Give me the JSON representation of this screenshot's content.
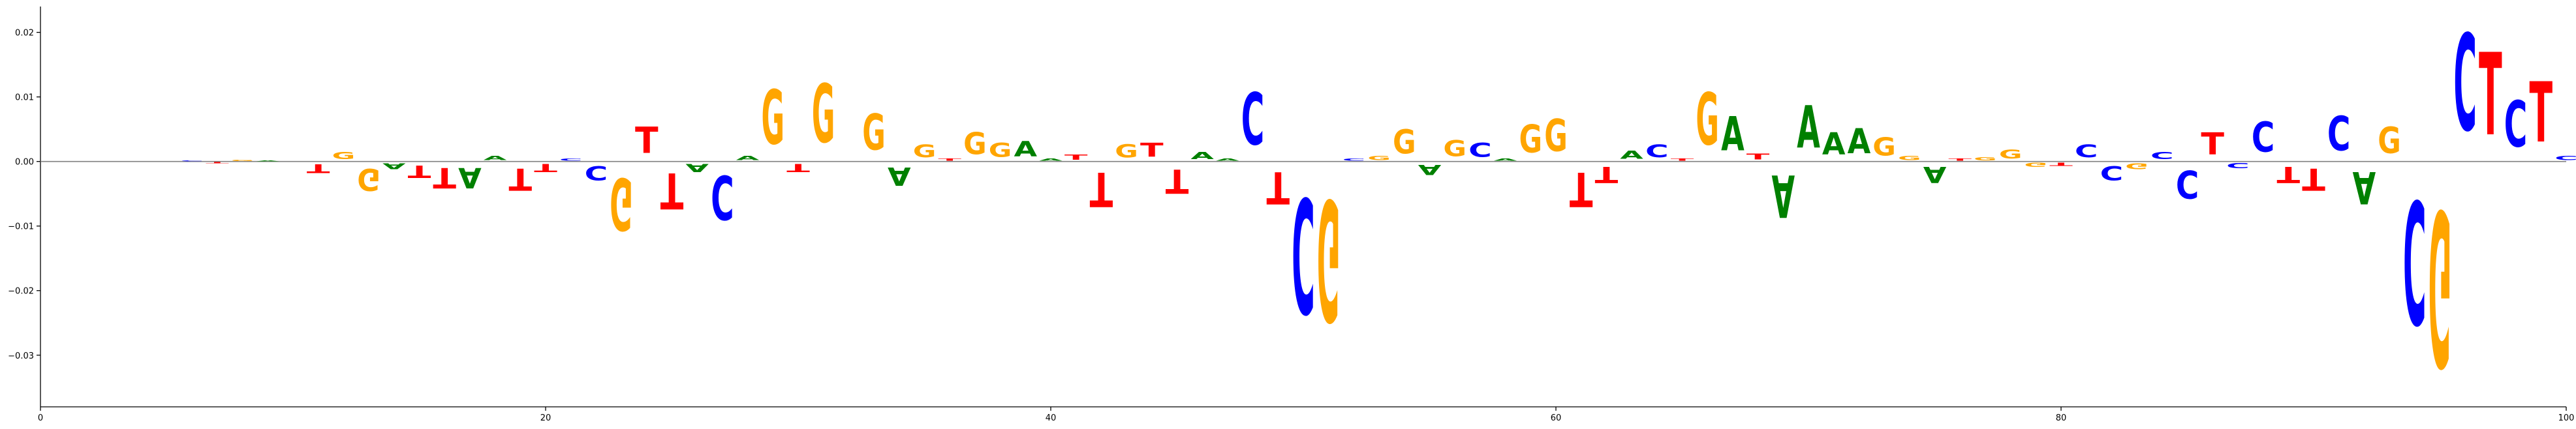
{
  "chart_data": {
    "type": "sequence-logo",
    "title": "",
    "xlabel": "",
    "ylabel": "",
    "xlim": [
      0,
      100
    ],
    "ylim": [
      -0.038,
      0.024
    ],
    "xticks": [
      0,
      20,
      40,
      60,
      80,
      100
    ],
    "xtick_labels": [
      "0",
      "20",
      "40",
      "60",
      "80",
      "100"
    ],
    "yticks": [
      -0.03,
      -0.02,
      -0.01,
      0.0,
      0.01,
      0.02
    ],
    "ytick_labels": [
      "−0.03",
      "−0.02",
      "−0.01",
      "0.00",
      "0.01",
      "0.02"
    ],
    "grid": false,
    "colors": {
      "A": "#008000",
      "C": "#0000ff",
      "G": "#ffa500",
      "T": "#ff0000"
    },
    "letters": [
      {
        "x": 6,
        "base": "C",
        "value": 0.0002
      },
      {
        "x": 7,
        "base": "T",
        "value": -0.0003
      },
      {
        "x": 8,
        "base": "G",
        "value": 0.0003
      },
      {
        "x": 9,
        "base": "A",
        "value": 0.0002
      },
      {
        "x": 11,
        "base": "T",
        "value": -0.0022
      },
      {
        "x": 12,
        "base": "G",
        "value": 0.0018
      },
      {
        "x": 13,
        "base": "G",
        "value": -0.0055
      },
      {
        "x": 14,
        "base": "A",
        "value": -0.0015
      },
      {
        "x": 15,
        "base": "T",
        "value": -0.003
      },
      {
        "x": 16,
        "base": "T",
        "value": -0.005
      },
      {
        "x": 17,
        "base": "A",
        "value": -0.005
      },
      {
        "x": 18,
        "base": "A",
        "value": 0.001
      },
      {
        "x": 19,
        "base": "T",
        "value": -0.0055
      },
      {
        "x": 20,
        "base": "T",
        "value": -0.002
      },
      {
        "x": 21,
        "base": "C",
        "value": 0.0005
      },
      {
        "x": 22,
        "base": "C",
        "value": -0.0035
      },
      {
        "x": 23,
        "base": "G",
        "value": -0.013
      },
      {
        "x": 24,
        "base": "T",
        "value": 0.0065
      },
      {
        "x": 25,
        "base": "T",
        "value": -0.009
      },
      {
        "x": 26,
        "base": "A",
        "value": -0.002
      },
      {
        "x": 27,
        "base": "C",
        "value": -0.011
      },
      {
        "x": 28,
        "base": "A",
        "value": 0.001
      },
      {
        "x": 29,
        "base": "G",
        "value": 0.0135
      },
      {
        "x": 30,
        "base": "T",
        "value": -0.002
      },
      {
        "x": 31,
        "base": "G",
        "value": 0.0145
      },
      {
        "x": 33,
        "base": "G",
        "value": 0.009
      },
      {
        "x": 34,
        "base": "A",
        "value": -0.0045
      },
      {
        "x": 35,
        "base": "G",
        "value": 0.0032
      },
      {
        "x": 36,
        "base": "T",
        "value": 0.0005
      },
      {
        "x": 37,
        "base": "G",
        "value": 0.0055
      },
      {
        "x": 38,
        "base": "G",
        "value": 0.0035
      },
      {
        "x": 39,
        "base": "A",
        "value": 0.0038
      },
      {
        "x": 40,
        "base": "A",
        "value": 0.0005
      },
      {
        "x": 41,
        "base": "T",
        "value": 0.0013
      },
      {
        "x": 42,
        "base": "T",
        "value": -0.0085
      },
      {
        "x": 43,
        "base": "G",
        "value": 0.0033
      },
      {
        "x": 44,
        "base": "T",
        "value": 0.0035
      },
      {
        "x": 45,
        "base": "T",
        "value": -0.006
      },
      {
        "x": 46,
        "base": "A",
        "value": 0.0018
      },
      {
        "x": 47,
        "base": "A",
        "value": 0.0005
      },
      {
        "x": 48,
        "base": "C",
        "value": 0.013
      },
      {
        "x": 49,
        "base": "T",
        "value": -0.008
      },
      {
        "x": 50,
        "base": "C",
        "value": -0.0285
      },
      {
        "x": 51,
        "base": "G",
        "value": -0.03
      },
      {
        "x": 52,
        "base": "C",
        "value": 0.0005
      },
      {
        "x": 53,
        "base": "G",
        "value": 0.001
      },
      {
        "x": 54,
        "base": "G",
        "value": 0.006
      },
      {
        "x": 55,
        "base": "A",
        "value": -0.0025
      },
      {
        "x": 56,
        "base": "G",
        "value": 0.004
      },
      {
        "x": 57,
        "base": "C",
        "value": 0.0035
      },
      {
        "x": 58,
        "base": "A",
        "value": 0.0005
      },
      {
        "x": 59,
        "base": "G",
        "value": 0.007
      },
      {
        "x": 60,
        "base": "G",
        "value": 0.008
      },
      {
        "x": 61,
        "base": "T",
        "value": -0.0085
      },
      {
        "x": 62,
        "base": "T",
        "value": -0.004
      },
      {
        "x": 63,
        "base": "A",
        "value": 0.002
      },
      {
        "x": 64,
        "base": "C",
        "value": 0.0032
      },
      {
        "x": 65,
        "base": "T",
        "value": 0.0005
      },
      {
        "x": 66,
        "base": "G",
        "value": 0.013
      },
      {
        "x": 67,
        "base": "A",
        "value": 0.0085
      },
      {
        "x": 68,
        "base": "T",
        "value": 0.0015
      },
      {
        "x": 69,
        "base": "A",
        "value": -0.0105
      },
      {
        "x": 70,
        "base": "A",
        "value": 0.0105
      },
      {
        "x": 71,
        "base": "A",
        "value": 0.0055
      },
      {
        "x": 72,
        "base": "A",
        "value": 0.0062
      },
      {
        "x": 73,
        "base": "G",
        "value": 0.0045
      },
      {
        "x": 74,
        "base": "G",
        "value": 0.001
      },
      {
        "x": 75,
        "base": "A",
        "value": -0.004
      },
      {
        "x": 76,
        "base": "T",
        "value": 0.0005
      },
      {
        "x": 77,
        "base": "G",
        "value": 0.0008
      },
      {
        "x": 78,
        "base": "G",
        "value": 0.0022
      },
      {
        "x": 79,
        "base": "G",
        "value": -0.001
      },
      {
        "x": 80,
        "base": "T",
        "value": -0.0008
      },
      {
        "x": 81,
        "base": "C",
        "value": 0.0032
      },
      {
        "x": 82,
        "base": "C",
        "value": -0.0035
      },
      {
        "x": 83,
        "base": "G",
        "value": -0.0015
      },
      {
        "x": 84,
        "base": "C",
        "value": 0.0018
      },
      {
        "x": 85,
        "base": "C",
        "value": -0.007
      },
      {
        "x": 86,
        "base": "T",
        "value": 0.0055
      },
      {
        "x": 87,
        "base": "C",
        "value": -0.0012
      },
      {
        "x": 88,
        "base": "C",
        "value": 0.0075
      },
      {
        "x": 89,
        "base": "T",
        "value": -0.004
      },
      {
        "x": 90,
        "base": "T",
        "value": -0.0055
      },
      {
        "x": 91,
        "base": "C",
        "value": 0.0085
      },
      {
        "x": 92,
        "base": "A",
        "value": -0.008
      },
      {
        "x": 93,
        "base": "G",
        "value": 0.0065
      },
      {
        "x": 94,
        "base": "C",
        "value": -0.0305
      },
      {
        "x": 95,
        "base": "G",
        "value": -0.0385
      },
      {
        "x": 96,
        "base": "C",
        "value": 0.024
      },
      {
        "x": 97,
        "base": "T",
        "value": 0.0205
      },
      {
        "x": 98,
        "base": "C",
        "value": 0.0115
      },
      {
        "x": 99,
        "base": "T",
        "value": 0.015
      },
      {
        "x": 100,
        "base": "C",
        "value": 0.001
      }
    ]
  }
}
